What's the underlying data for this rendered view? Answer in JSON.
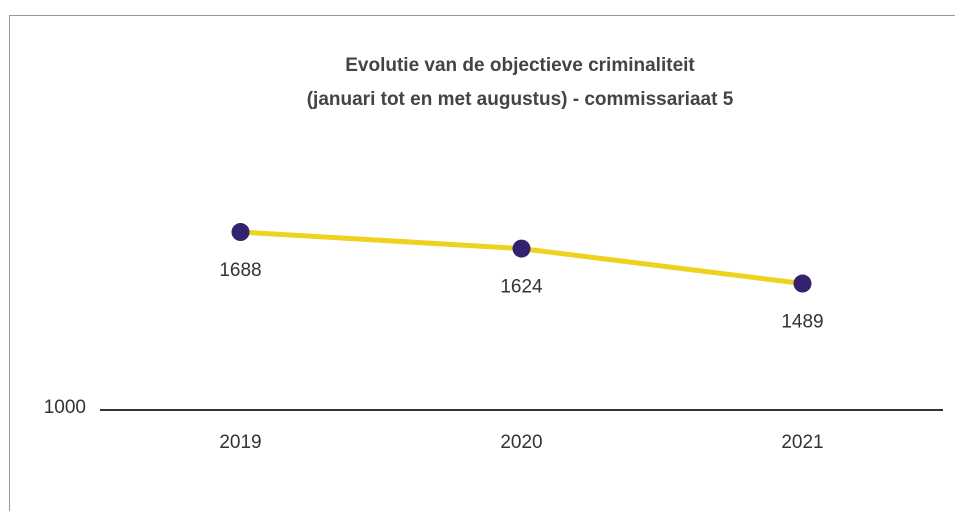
{
  "chart_data": {
    "type": "line",
    "title": [
      "Evolutie van de objectieve criminaliteit",
      "(januari tot en met augustus) - commissariaat 5"
    ],
    "categories": [
      "2019",
      "2020",
      "2021"
    ],
    "series": [
      {
        "name": "objectieve criminaliteit",
        "color": "#eed21f",
        "marker_color": "#33236e",
        "values": [
          1688,
          1624,
          1489
        ]
      }
    ],
    "ylim": [
      1000,
      2500
    ],
    "yticks": [
      1000
    ],
    "grid": false
  }
}
